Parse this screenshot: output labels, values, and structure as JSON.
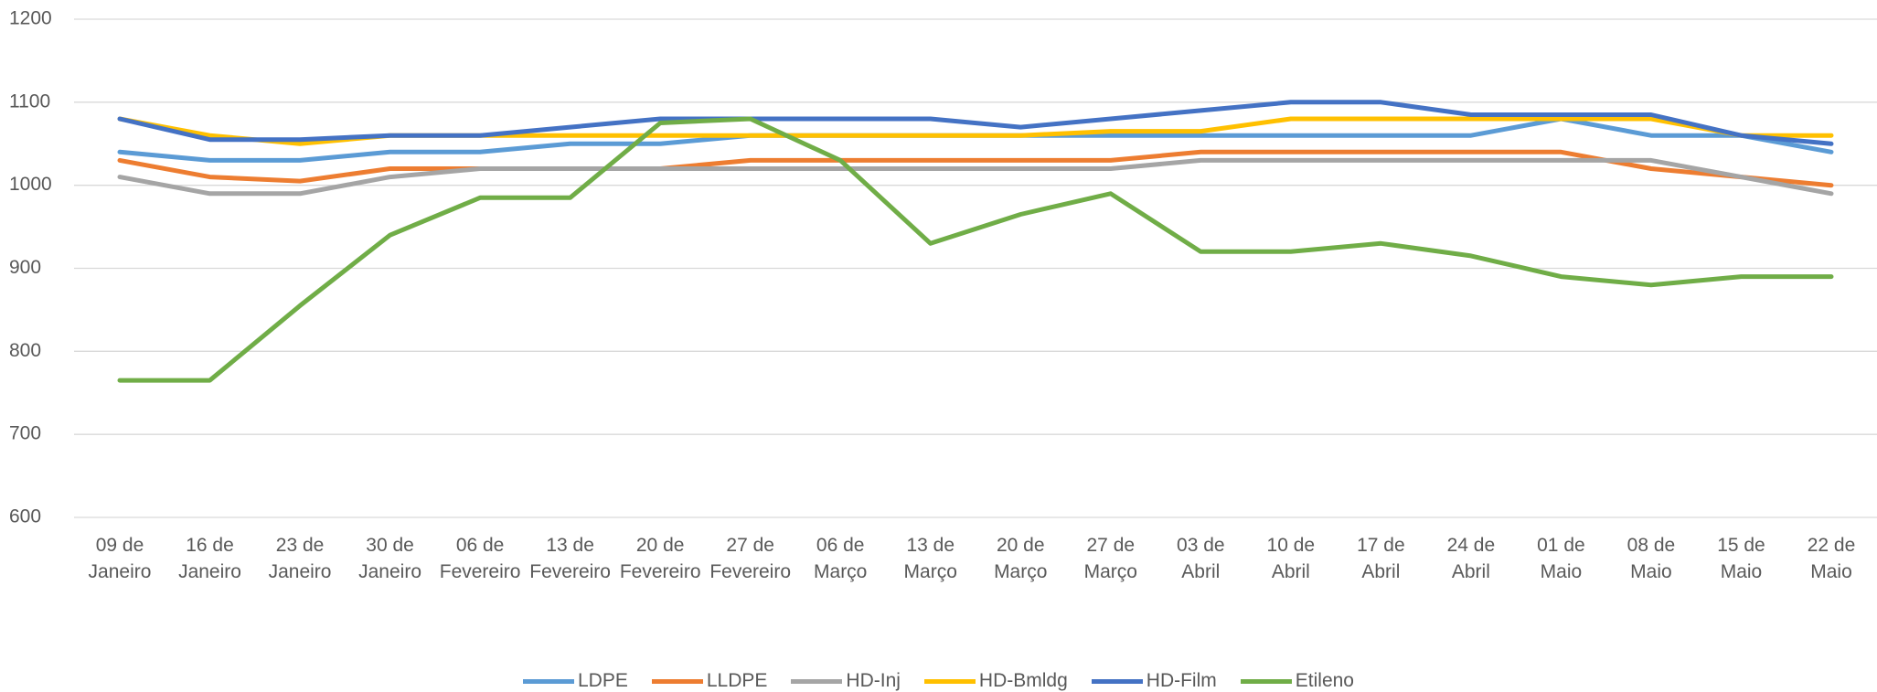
{
  "chart_data": {
    "type": "line",
    "categories": [
      "09 de Janeiro",
      "16 de Janeiro",
      "23 de Janeiro",
      "30 de Janeiro",
      "06 de Fevereiro",
      "13 de Fevereiro",
      "20 de Fevereiro",
      "27 de Fevereiro",
      "06 de Março",
      "13 de Março",
      "20 de Março",
      "27 de Março",
      "03 de Abril",
      "10 de Abril",
      "17 de Abril",
      "24 de Abril",
      "01 de Maio",
      "08 de Maio",
      "15 de Maio",
      "22 de Maio"
    ],
    "series": [
      {
        "name": "LDPE",
        "color": "#5b9bd5",
        "values": [
          1040,
          1030,
          1030,
          1040,
          1040,
          1050,
          1050,
          1060,
          1060,
          1060,
          1060,
          1060,
          1060,
          1060,
          1060,
          1060,
          1080,
          1060,
          1060,
          1040
        ]
      },
      {
        "name": "LLDPE",
        "color": "#ed7d31",
        "values": [
          1030,
          1010,
          1005,
          1020,
          1020,
          1020,
          1020,
          1030,
          1030,
          1030,
          1030,
          1030,
          1040,
          1040,
          1040,
          1040,
          1040,
          1020,
          1010,
          1000
        ]
      },
      {
        "name": "HD-Inj",
        "color": "#a5a5a5",
        "values": [
          1010,
          990,
          990,
          1010,
          1020,
          1020,
          1020,
          1020,
          1020,
          1020,
          1020,
          1020,
          1030,
          1030,
          1030,
          1030,
          1030,
          1030,
          1010,
          990
        ]
      },
      {
        "name": "HD-Bmldg",
        "color": "#ffc000",
        "values": [
          1080,
          1060,
          1050,
          1060,
          1060,
          1060,
          1060,
          1060,
          1060,
          1060,
          1060,
          1065,
          1065,
          1080,
          1080,
          1080,
          1080,
          1080,
          1060,
          1060
        ]
      },
      {
        "name": "HD-Film",
        "color": "#4472c4",
        "values": [
          1080,
          1055,
          1055,
          1060,
          1060,
          1070,
          1080,
          1080,
          1080,
          1080,
          1070,
          1080,
          1090,
          1100,
          1100,
          1085,
          1085,
          1085,
          1060,
          1050
        ]
      },
      {
        "name": "Etileno",
        "color": "#70ad47",
        "values": [
          765,
          765,
          855,
          940,
          985,
          985,
          1075,
          1080,
          1030,
          930,
          965,
          990,
          920,
          920,
          930,
          915,
          890,
          880,
          890,
          890
        ]
      }
    ],
    "ylim": [
      600,
      1200
    ],
    "yticks": [
      600,
      700,
      800,
      900,
      1000,
      1100,
      1200
    ],
    "grid": true
  }
}
